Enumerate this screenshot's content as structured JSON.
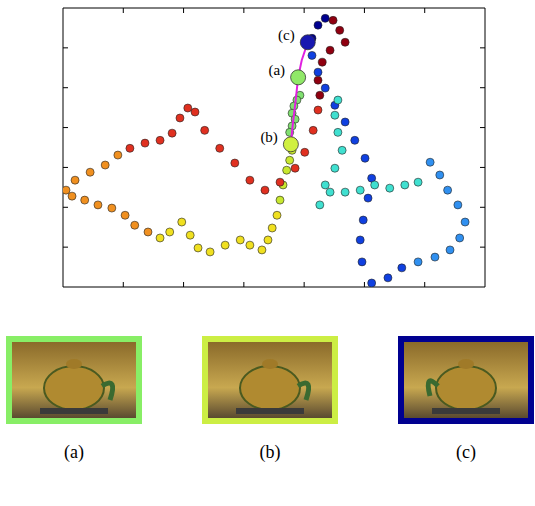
{
  "chart_data": {
    "type": "scatter",
    "xlim": [
      0,
      7
    ],
    "ylim": [
      0,
      7
    ],
    "xticks": [
      1,
      2,
      3,
      4,
      5,
      6
    ],
    "yticks": [
      1,
      2,
      3,
      4,
      5,
      6
    ],
    "tick_labels": false,
    "grid": false,
    "series": [
      {
        "color": "#80e070",
        "marker": "circle",
        "points": [
          [
            3.93,
            4.81
          ],
          [
            3.88,
            4.69
          ],
          [
            3.83,
            4.54
          ],
          [
            3.8,
            4.36
          ],
          [
            3.85,
            4.21
          ],
          [
            3.8,
            4.04
          ],
          [
            3.76,
            3.88
          ]
        ]
      },
      {
        "color": "#c8e830",
        "marker": "circle",
        "points": [
          [
            3.8,
            3.43
          ],
          [
            3.76,
            3.18
          ],
          [
            3.71,
            2.93
          ],
          [
            3.65,
            2.56
          ],
          [
            3.6,
            2.18
          ]
        ]
      },
      {
        "color": "#f0e020",
        "marker": "circle",
        "points": [
          [
            3.55,
            1.8
          ],
          [
            3.47,
            1.48
          ],
          [
            3.4,
            1.18
          ],
          [
            3.3,
            0.93
          ],
          [
            3.1,
            1.05
          ],
          [
            2.94,
            1.18
          ],
          [
            2.69,
            1.05
          ],
          [
            2.44,
            0.88
          ],
          [
            2.24,
            0.98
          ],
          [
            2.11,
            1.3
          ],
          [
            1.97,
            1.63
          ],
          [
            1.77,
            1.38
          ],
          [
            1.61,
            1.23
          ]
        ]
      },
      {
        "color": "#f09020",
        "marker": "circle",
        "points": [
          [
            1.41,
            1.38
          ],
          [
            1.19,
            1.55
          ],
          [
            1.03,
            1.8
          ],
          [
            0.81,
            1.98
          ],
          [
            0.58,
            2.06
          ],
          [
            0.36,
            2.18
          ],
          [
            0.15,
            2.28
          ],
          [
            0.05,
            2.43
          ],
          [
            0.2,
            2.68
          ],
          [
            0.45,
            2.88
          ],
          [
            0.7,
            3.06
          ],
          [
            0.91,
            3.31
          ]
        ]
      },
      {
        "color": "#e03020",
        "marker": "circle",
        "points": [
          [
            1.11,
            3.48
          ],
          [
            1.36,
            3.61
          ],
          [
            1.61,
            3.68
          ],
          [
            1.81,
            3.86
          ],
          [
            1.94,
            4.24
          ],
          [
            2.07,
            4.49
          ],
          [
            2.19,
            4.39
          ],
          [
            2.35,
            3.93
          ],
          [
            2.6,
            3.48
          ],
          [
            2.85,
            3.11
          ],
          [
            3.1,
            2.68
          ],
          [
            3.35,
            2.43
          ],
          [
            3.6,
            2.63
          ],
          [
            3.85,
            2.98
          ],
          [
            4.01,
            3.38
          ],
          [
            4.15,
            3.93
          ],
          [
            4.23,
            4.44
          ]
        ]
      },
      {
        "color": "#900010",
        "marker": "circle",
        "points": [
          [
            4.26,
            4.81
          ],
          [
            4.23,
            5.19
          ],
          [
            4.3,
            5.64
          ],
          [
            4.43,
            5.94
          ],
          [
            4.68,
            6.14
          ],
          [
            4.59,
            6.44
          ],
          [
            4.48,
            6.69
          ]
        ]
      },
      {
        "color": "#000090",
        "marker": "circle",
        "points": [
          [
            4.35,
            6.74
          ],
          [
            4.23,
            6.57
          ],
          [
            4.13,
            6.24
          ]
        ]
      },
      {
        "color": "#1040e0",
        "marker": "circle",
        "points": [
          [
            4.13,
            5.81
          ],
          [
            4.23,
            5.39
          ],
          [
            4.35,
            4.99
          ],
          [
            4.51,
            4.56
          ],
          [
            4.68,
            4.14
          ],
          [
            4.84,
            3.68
          ],
          [
            5.01,
            3.23
          ],
          [
            5.12,
            2.73
          ],
          [
            5.06,
            2.23
          ],
          [
            4.98,
            1.68
          ],
          [
            4.93,
            1.18
          ],
          [
            4.96,
            0.63
          ],
          [
            5.12,
            0.1
          ],
          [
            5.39,
            0.23
          ],
          [
            5.62,
            0.48
          ]
        ]
      },
      {
        "color": "#3090f0",
        "marker": "circle",
        "points": [
          [
            5.89,
            0.63
          ],
          [
            6.17,
            0.75
          ],
          [
            6.42,
            0.93
          ],
          [
            6.58,
            1.23
          ],
          [
            6.67,
            1.63
          ],
          [
            6.55,
            2.06
          ],
          [
            6.38,
            2.43
          ],
          [
            6.25,
            2.81
          ],
          [
            6.09,
            3.13
          ]
        ]
      },
      {
        "color": "#40e0d0",
        "marker": "circle",
        "points": [
          [
            5.89,
            2.63
          ],
          [
            5.67,
            2.56
          ],
          [
            5.42,
            2.48
          ],
          [
            5.17,
            2.56
          ],
          [
            4.93,
            2.43
          ],
          [
            4.68,
            2.38
          ],
          [
            4.43,
            2.38
          ],
          [
            4.26,
            2.06
          ],
          [
            4.35,
            2.56
          ],
          [
            4.51,
            2.98
          ],
          [
            4.63,
            3.43
          ],
          [
            4.56,
            3.88
          ],
          [
            4.51,
            4.31
          ],
          [
            4.56,
            4.69
          ]
        ]
      },
      {
        "type": "line",
        "color": "#e020e0",
        "marker": "none",
        "points": [
          [
            4.06,
            6.14
          ],
          [
            3.96,
            5.69
          ],
          [
            3.9,
            5.26
          ],
          [
            3.86,
            4.69
          ],
          [
            3.81,
            4.06
          ],
          [
            3.78,
            3.58
          ]
        ]
      }
    ],
    "annotations": [
      {
        "text": "(a)",
        "x": 3.9,
        "y": 5.26,
        "color": "#90e868"
      },
      {
        "text": "(b)",
        "x": 3.78,
        "y": 3.58,
        "color": "#d0f040"
      },
      {
        "text": "(c)",
        "x": 4.06,
        "y": 6.14,
        "color": "#1818b0"
      }
    ]
  },
  "images": [
    {
      "label": "(a)",
      "color": "#88ee66"
    },
    {
      "label": "(b)",
      "color": "#ccee44"
    },
    {
      "label": "(c)",
      "color": "#000090"
    }
  ]
}
